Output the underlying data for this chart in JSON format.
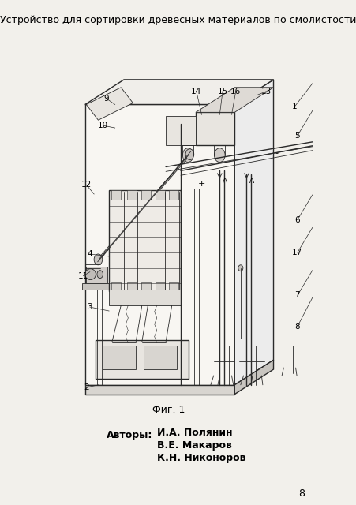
{
  "title": "Устройство для сортировки древесных материалов по смолистости",
  "fig_label": "Фиг. 1",
  "authors_label": "Авторы:",
  "authors": [
    "И.А. Полянин",
    "В.Е. Макаров",
    "К.Н. Никоноров"
  ],
  "page_number": "8",
  "bg_color": "#f2f0eb",
  "line_color": "#2a2a2a",
  "title_fontsize": 9.0,
  "fig_label_fontsize": 9,
  "authors_fontsize": 9,
  "page_fontsize": 9
}
